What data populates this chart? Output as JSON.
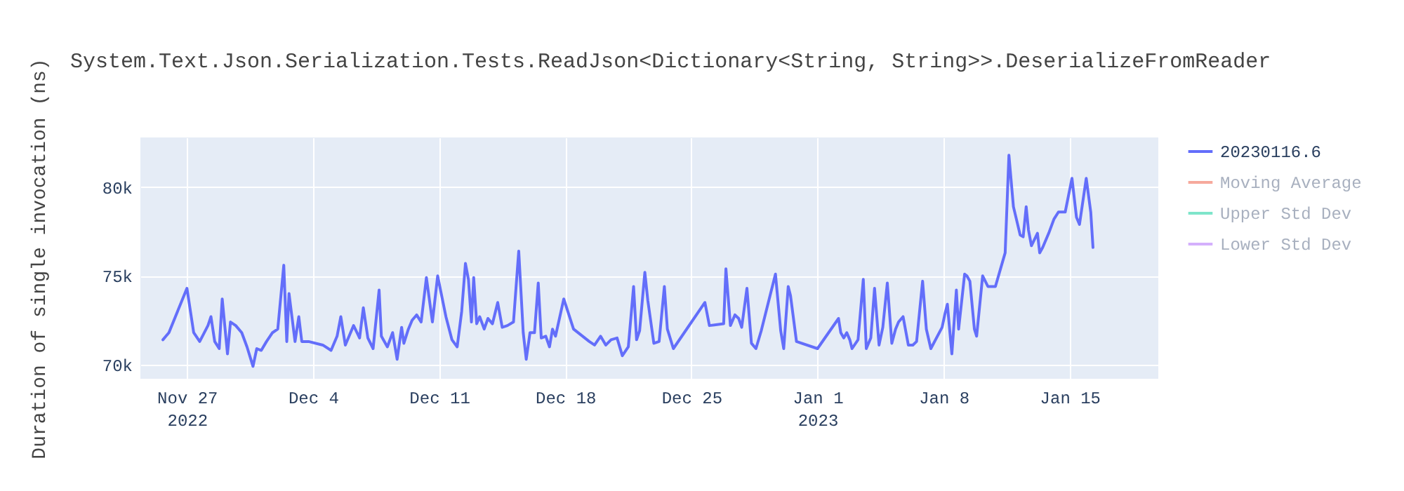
{
  "chart_data": {
    "type": "line",
    "title": "System.Text.Json.Serialization.Tests.ReadJson<Dictionary<String, String>>.DeserializeFromReader",
    "ylabel": "Duration of single invocation (ns)",
    "x": [
      "2022-11-25T16:00",
      "2022-11-25T20:00",
      "2022-11-26T00:00",
      "2022-11-27T00:00",
      "2022-11-27T09:00",
      "2022-11-27T17:00",
      "2022-11-28T04:00",
      "2022-11-28T08:00",
      "2022-11-28T13:00",
      "2022-11-28T19:00",
      "2022-11-28T23:00",
      "2022-11-29T06:00",
      "2022-11-29T10:00",
      "2022-11-29T17:00",
      "2022-11-30T01:00",
      "2022-11-30T08:00",
      "2022-11-30T16:00",
      "2022-11-30T21:00",
      "2022-12-01T03:00",
      "2022-12-01T10:00",
      "2022-12-01T18:00",
      "2022-12-02T01:00",
      "2022-12-02T09:00",
      "2022-12-02T13:00",
      "2022-12-02T16:00",
      "2022-12-03T00:00",
      "2022-12-03T05:00",
      "2022-12-03T09:00",
      "2022-12-03T18:00",
      "2022-12-04T13:00",
      "2022-12-05T00:00",
      "2022-12-05T08:00",
      "2022-12-05T13:00",
      "2022-12-05T19:00",
      "2022-12-06T01:00",
      "2022-12-06T06:00",
      "2022-12-06T14:00",
      "2022-12-06T19:00",
      "2022-12-07T01:00",
      "2022-12-07T08:00",
      "2022-12-07T16:00",
      "2022-12-07T19:00",
      "2022-12-08T03:00",
      "2022-12-08T10:00",
      "2022-12-08T16:00",
      "2022-12-08T22:00",
      "2022-12-09T01:00",
      "2022-12-09T07:00",
      "2022-12-09T12:00",
      "2022-12-09T18:00",
      "2022-12-10T00:00",
      "2022-12-10T07:00",
      "2022-12-10T15:00",
      "2022-12-10T22:00",
      "2022-12-11T09:00",
      "2022-12-11T17:00",
      "2022-12-12T00:00",
      "2022-12-12T06:00",
      "2022-12-12T11:00",
      "2022-12-12T15:00",
      "2022-12-12T19:00",
      "2022-12-12T22:00",
      "2022-12-13T02:00",
      "2022-12-13T06:00",
      "2022-12-13T12:00",
      "2022-12-13T17:00",
      "2022-12-13T23:00",
      "2022-12-14T06:00",
      "2022-12-14T12:00",
      "2022-12-14T19:00",
      "2022-12-15T03:00",
      "2022-12-15T10:00",
      "2022-12-15T16:00",
      "2022-12-15T20:00",
      "2022-12-16T01:00",
      "2022-12-16T07:00",
      "2022-12-16T12:00",
      "2022-12-16T16:00",
      "2022-12-16T22:00",
      "2022-12-17T03:00",
      "2022-12-17T07:00",
      "2022-12-17T11:00",
      "2022-12-17T22:00",
      "2022-12-18T11:00",
      "2022-12-19T08:00",
      "2022-12-19T15:00",
      "2022-12-19T23:00",
      "2022-12-20T06:00",
      "2022-12-20T13:00",
      "2022-12-20T21:00",
      "2022-12-21T04:00",
      "2022-12-21T12:00",
      "2022-12-21T19:00",
      "2022-12-21T23:00",
      "2022-12-22T03:00",
      "2022-12-22T10:00",
      "2022-12-22T14:00",
      "2022-12-22T22:00",
      "2022-12-23T05:00",
      "2022-12-23T12:00",
      "2022-12-23T16:00",
      "2022-12-24T00:00",
      "2022-12-25T18:00",
      "2022-12-26T00:00",
      "2022-12-26T19:00",
      "2022-12-26T22:00",
      "2022-12-27T04:00",
      "2022-12-27T10:00",
      "2022-12-27T15:00",
      "2022-12-27T19:00",
      "2022-12-28T02:00",
      "2022-12-28T08:00",
      "2022-12-28T14:00",
      "2022-12-28T21:00",
      "2022-12-29T16:00",
      "2022-12-29T23:00",
      "2022-12-30T03:00",
      "2022-12-30T09:00",
      "2022-12-30T12:00",
      "2022-12-30T20:00",
      "2023-01-01T00:00",
      "2023-01-02T04:00",
      "2023-01-02T07:00",
      "2023-01-02T11:00",
      "2023-01-02T15:00",
      "2023-01-02T19:00",
      "2023-01-02T22:00",
      "2023-01-03T06:00",
      "2023-01-03T13:00",
      "2023-01-03T17:00",
      "2023-01-03T23:00",
      "2023-01-04T04:00",
      "2023-01-04T10:00",
      "2023-01-04T15:00",
      "2023-01-04T21:00",
      "2023-01-05T03:00",
      "2023-01-05T08:00",
      "2023-01-05T12:00",
      "2023-01-05T18:00",
      "2023-01-06T01:00",
      "2023-01-06T07:00",
      "2023-01-06T12:00",
      "2023-01-06T20:00",
      "2023-01-07T01:00",
      "2023-01-07T07:00",
      "2023-01-07T22:00",
      "2023-01-08T02:00",
      "2023-01-08T05:00",
      "2023-01-08T11:00",
      "2023-01-08T17:00",
      "2023-01-08T20:00",
      "2023-01-09T04:00",
      "2023-01-09T07:00",
      "2023-01-09T11:00",
      "2023-01-09T17:00",
      "2023-01-09T20:00",
      "2023-01-10T04:00",
      "2023-01-10T11:00",
      "2023-01-10T21:00",
      "2023-01-11T10:00",
      "2023-01-11T15:00",
      "2023-01-11T21:00",
      "2023-01-12T06:00",
      "2023-01-12T10:00",
      "2023-01-12T14:00",
      "2023-01-12T17:00",
      "2023-01-12T21:00",
      "2023-01-13T05:00",
      "2023-01-13T08:00",
      "2023-01-13T12:00",
      "2023-01-13T20:00",
      "2023-01-14T03:00",
      "2023-01-14T09:00",
      "2023-01-14T18:00",
      "2023-01-15T03:00",
      "2023-01-15T09:00",
      "2023-01-15T13:00",
      "2023-01-15T22:00",
      "2023-01-16T04:00",
      "2023-01-16T07:00"
    ],
    "series": [
      {
        "name": "20230116.6",
        "color": "#636efa",
        "values": [
          71400,
          71600,
          71800,
          74300,
          71800,
          71300,
          72200,
          72700,
          71300,
          70900,
          73700,
          70600,
          72400,
          72200,
          71800,
          71000,
          69900,
          70900,
          70800,
          71300,
          71800,
          72000,
          75600,
          71300,
          74000,
          71300,
          72700,
          71300,
          71300,
          71100,
          70800,
          71600,
          72700,
          71100,
          71700,
          72200,
          71500,
          73200,
          71500,
          70900,
          74200,
          71600,
          71000,
          71800,
          70300,
          72100,
          71200,
          72000,
          72500,
          72800,
          72400,
          74900,
          72400,
          75000,
          72700,
          71400,
          71000,
          73000,
          75700,
          74800,
          72400,
          74900,
          72300,
          72700,
          72000,
          72600,
          72300,
          73500,
          72100,
          72200,
          72400,
          76400,
          71800,
          70300,
          71800,
          71800,
          74600,
          71500,
          71600,
          71000,
          72000,
          71600,
          73700,
          72000,
          71300,
          71100,
          71600,
          71100,
          71400,
          71500,
          70500,
          71000,
          74400,
          71400,
          71900,
          75200,
          73600,
          71200,
          71300,
          74400,
          72000,
          70900,
          73500,
          72200,
          72300,
          75400,
          72200,
          72800,
          72600,
          72100,
          74300,
          71200,
          70900,
          71900,
          75100,
          71900,
          70900,
          74400,
          73900,
          71300,
          70900,
          72600,
          71800,
          71500,
          71800,
          71400,
          70900,
          71400,
          74800,
          70900,
          71500,
          74300,
          71100,
          72100,
          74600,
          71200,
          72000,
          72400,
          72700,
          71100,
          71100,
          71300,
          74700,
          72000,
          70900,
          72100,
          72900,
          73400,
          70600,
          74200,
          72000,
          75100,
          75000,
          74700,
          72000,
          71600,
          75000,
          74400,
          74400,
          76300,
          81800,
          78900,
          77300,
          77200,
          78900,
          77600,
          76700,
          77400,
          76300,
          76600,
          77400,
          78200,
          78600,
          78600,
          80500,
          78300,
          77900,
          80500,
          78600,
          76600
        ]
      },
      {
        "name": "Moving Average",
        "color": "#ef553b",
        "values": [
          null,
          null,
          null,
          null,
          null,
          null,
          null,
          null,
          null,
          null,
          null,
          null,
          null,
          null,
          null,
          null,
          null,
          null,
          null,
          null,
          null,
          null,
          null,
          null,
          null,
          null,
          null,
          null,
          null,
          null,
          null,
          null,
          null,
          null,
          null,
          null,
          null,
          null,
          null,
          null,
          null,
          null,
          null,
          null,
          null,
          null,
          null,
          null,
          null,
          null,
          null,
          null,
          null,
          null,
          null,
          null,
          null,
          null,
          null,
          null,
          null,
          null,
          null,
          null,
          null,
          null,
          null,
          null,
          null,
          null,
          null,
          null,
          null,
          null,
          null,
          null,
          null,
          null,
          null,
          null,
          null,
          null,
          null,
          null,
          null,
          null,
          null,
          null,
          null,
          null,
          null,
          null,
          null,
          null,
          null,
          null,
          null,
          null,
          null,
          null,
          null,
          null,
          null,
          null,
          null,
          null,
          null,
          null,
          null,
          null,
          null,
          null,
          null,
          null,
          null,
          null,
          null,
          null,
          null,
          null,
          null,
          null,
          null,
          null,
          null,
          null,
          null,
          null,
          null,
          null,
          null,
          null,
          null,
          null,
          null,
          null,
          null,
          null,
          null,
          null,
          null,
          null,
          null,
          null,
          null,
          null,
          null,
          null,
          null,
          null,
          null,
          null,
          null,
          null,
          null,
          null,
          null,
          null,
          null,
          null,
          null,
          null,
          null,
          null,
          null,
          null,
          null,
          null,
          null,
          null,
          null,
          null,
          null,
          null,
          null,
          null,
          null,
          null,
          null,
          null
        ]
      },
      {
        "name": "Upper Std Dev",
        "color": "#00cc96",
        "values": [
          null,
          null,
          null,
          null,
          null,
          null,
          null,
          null,
          null,
          null,
          null,
          null,
          null,
          null,
          null,
          null,
          null,
          null,
          null,
          null,
          null,
          null,
          null,
          null,
          null,
          null,
          null,
          null,
          null,
          null,
          null,
          null,
          null,
          null,
          null,
          null,
          null,
          null,
          null,
          null,
          null,
          null,
          null,
          null,
          null,
          null,
          null,
          null,
          null,
          null,
          null,
          null,
          null,
          null,
          null,
          null,
          null,
          null,
          null,
          null,
          null,
          null,
          null,
          null,
          null,
          null,
          null,
          null,
          null,
          null,
          null,
          null,
          null,
          null,
          null,
          null,
          null,
          null,
          null,
          null,
          null,
          null,
          null,
          null,
          null,
          null,
          null,
          null,
          null,
          null,
          null,
          null,
          null,
          null,
          null,
          null,
          null,
          null,
          null,
          null,
          null,
          null,
          null,
          null,
          null,
          null,
          null,
          null,
          null,
          null,
          null,
          null,
          null,
          null,
          null,
          null,
          null,
          null,
          null,
          null,
          null,
          null,
          null,
          null,
          null,
          null,
          null,
          null,
          null,
          null,
          null,
          null,
          null,
          null,
          null,
          null,
          null,
          null,
          null,
          null,
          null,
          null,
          null,
          null,
          null,
          null,
          null,
          null,
          null,
          null,
          null,
          null,
          null,
          null,
          null,
          null,
          null,
          null,
          null,
          null,
          null,
          null,
          null,
          null,
          null,
          null,
          null,
          null,
          null,
          null,
          null,
          null,
          null,
          null,
          null,
          null,
          null,
          null,
          null,
          null
        ]
      },
      {
        "name": "Lower Std Dev",
        "color": "#ab63fa",
        "values": [
          null,
          null,
          null,
          null,
          null,
          null,
          null,
          null,
          null,
          null,
          null,
          null,
          null,
          null,
          null,
          null,
          null,
          null,
          null,
          null,
          null,
          null,
          null,
          null,
          null,
          null,
          null,
          null,
          null,
          null,
          null,
          null,
          null,
          null,
          null,
          null,
          null,
          null,
          null,
          null,
          null,
          null,
          null,
          null,
          null,
          null,
          null,
          null,
          null,
          null,
          null,
          null,
          null,
          null,
          null,
          null,
          null,
          null,
          null,
          null,
          null,
          null,
          null,
          null,
          null,
          null,
          null,
          null,
          null,
          null,
          null,
          null,
          null,
          null,
          null,
          null,
          null,
          null,
          null,
          null,
          null,
          null,
          null,
          null,
          null,
          null,
          null,
          null,
          null,
          null,
          null,
          null,
          null,
          null,
          null,
          null,
          null,
          null,
          null,
          null,
          null,
          null,
          null,
          null,
          null,
          null,
          null,
          null,
          null,
          null,
          null,
          null,
          null,
          null,
          null,
          null,
          null,
          null,
          null,
          null,
          null,
          null,
          null,
          null,
          null,
          null,
          null,
          null,
          null,
          null,
          null,
          null,
          null,
          null,
          null,
          null,
          null,
          null,
          null,
          null,
          null,
          null,
          null,
          null,
          null,
          null,
          null,
          null,
          null,
          null,
          null,
          null,
          null,
          null,
          null,
          null,
          null,
          null,
          null,
          null,
          null,
          null,
          null,
          null,
          null,
          null,
          null,
          null,
          null,
          null,
          null,
          null,
          null,
          null,
          null,
          null,
          null,
          null,
          null,
          null
        ]
      }
    ],
    "xlim": [
      "2022-11-24T10:00",
      "2023-01-19T22:00"
    ],
    "xticks": [
      {
        "value": "2022-11-27",
        "label": "Nov 27\n2022"
      },
      {
        "value": "2022-12-04",
        "label": "Dec 4"
      },
      {
        "value": "2022-12-11",
        "label": "Dec 11"
      },
      {
        "value": "2022-12-18",
        "label": "Dec 18"
      },
      {
        "value": "2022-12-25",
        "label": "Dec 25"
      },
      {
        "value": "2023-01-01",
        "label": "Jan 1\n2023"
      },
      {
        "value": "2023-01-08",
        "label": "Jan 8"
      },
      {
        "value": "2023-01-15",
        "label": "Jan 15"
      }
    ],
    "ylim": [
      69200,
      82800
    ],
    "yticks": [
      {
        "value": 70000,
        "label": "70k"
      },
      {
        "value": 75000,
        "label": "75k"
      },
      {
        "value": 80000,
        "label": "80k"
      }
    ],
    "grid": true,
    "legend": "top right",
    "marker": "none",
    "line_style": "solid"
  }
}
